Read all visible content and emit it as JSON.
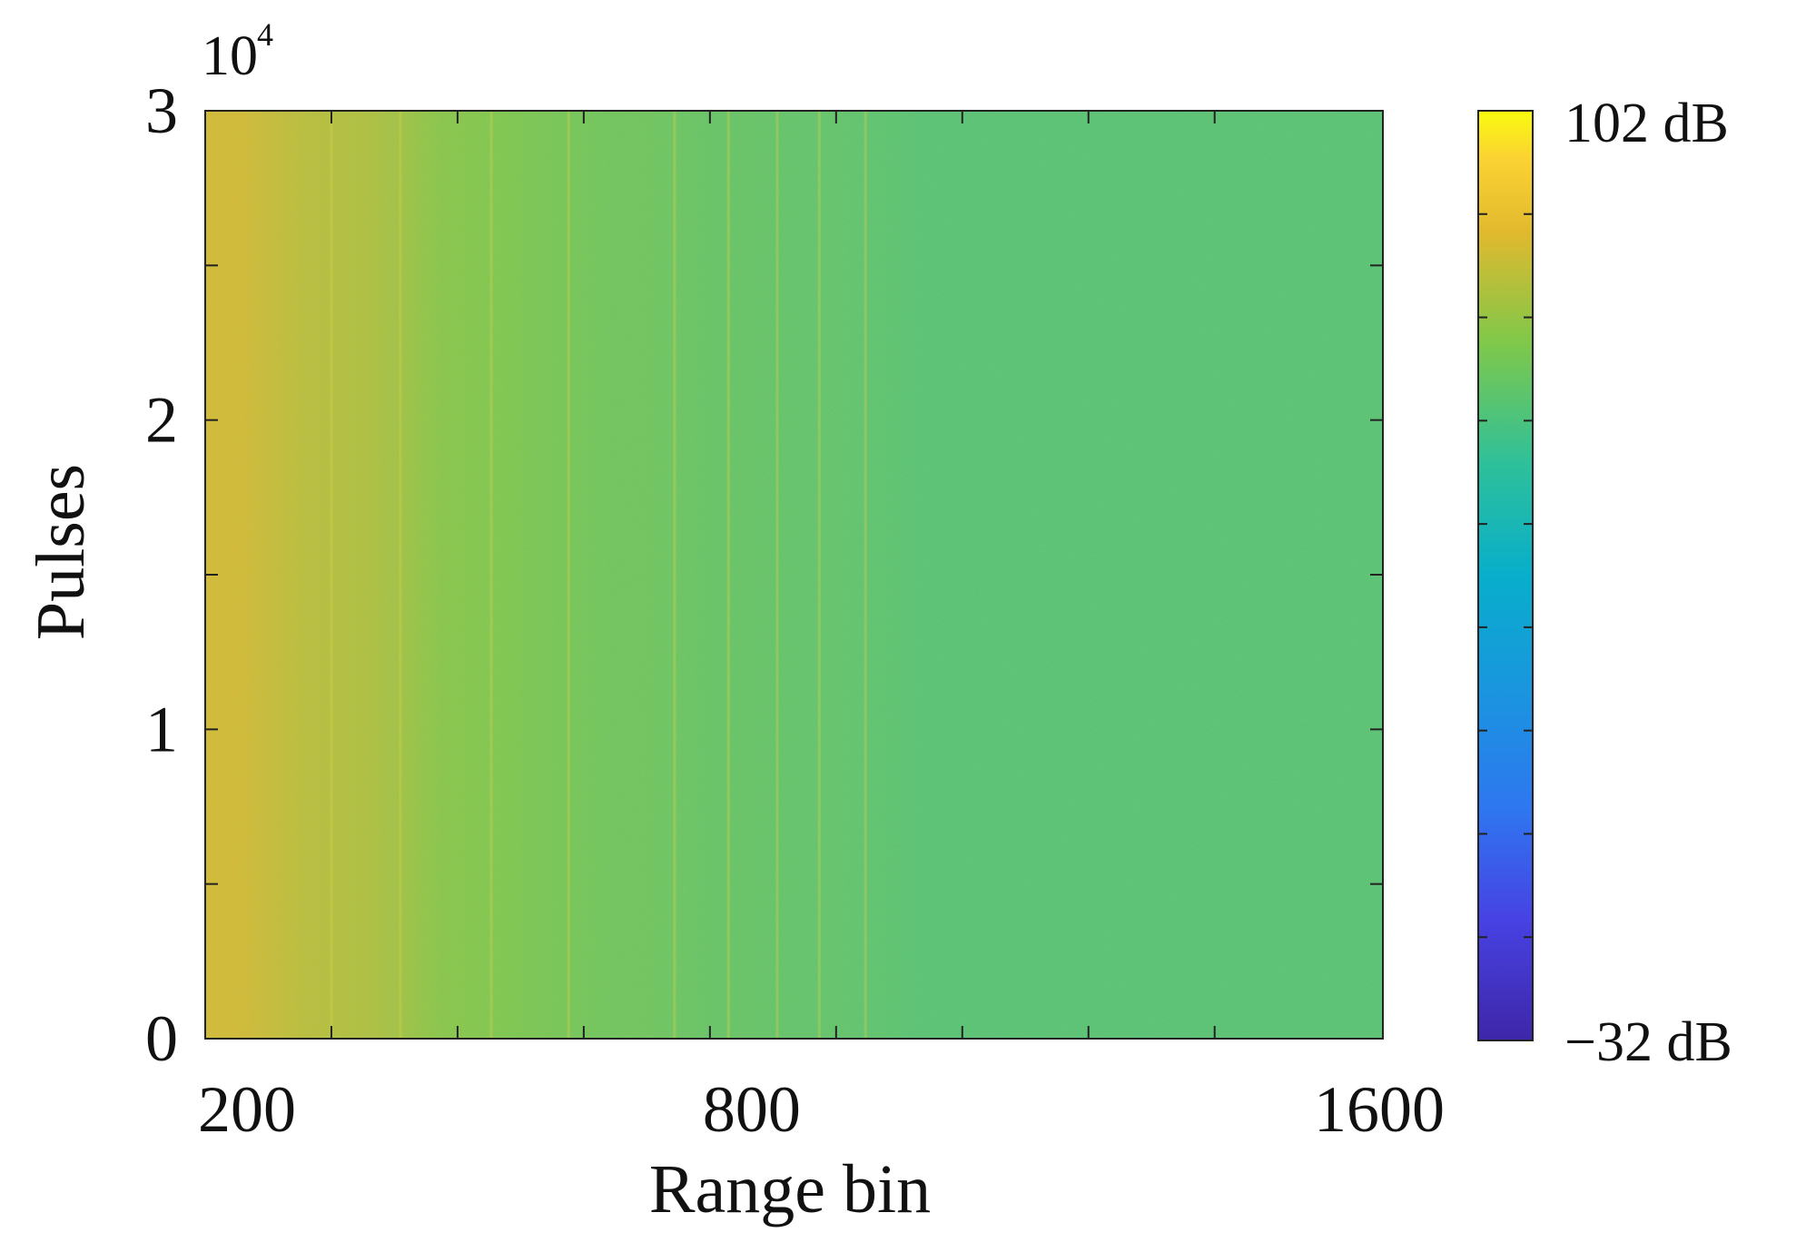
{
  "chart_data": {
    "type": "heatmap",
    "title": "",
    "xlabel": "Range bin",
    "ylabel": "Pulses",
    "x_range": [
      200,
      1600
    ],
    "y_range": [
      0,
      30000
    ],
    "x_ticks": [
      200,
      800,
      1600
    ],
    "x_tick_labels": [
      "200",
      "800",
      "1600"
    ],
    "x_minor_ticks": [
      200,
      350,
      500,
      650,
      800,
      950,
      1100,
      1250,
      1400,
      1600
    ],
    "y_ticks": [
      0,
      10000,
      20000,
      30000
    ],
    "y_tick_labels": [
      "0",
      "1",
      "2",
      "3"
    ],
    "y_minor_ticks": [
      0,
      5000,
      10000,
      15000,
      20000,
      25000,
      30000
    ],
    "y_exponent_base": "10",
    "y_exponent_power": "4",
    "colorbar": {
      "min": -32,
      "max": 102,
      "max_label": "102 dB",
      "min_label": "−32 dB",
      "colormap": "parula"
    },
    "intensity_profile_db": {
      "x": [
        200,
        240,
        280,
        320,
        360,
        400,
        440,
        480,
        520,
        560,
        600,
        640,
        680,
        720,
        760,
        800,
        850,
        900,
        950,
        1000,
        1050,
        1100,
        1150,
        1200,
        1250,
        1300,
        1350,
        1400,
        1450,
        1500,
        1550,
        1600
      ],
      "values": [
        82,
        82,
        80,
        78,
        77,
        76,
        73,
        70,
        69,
        68,
        67,
        66,
        65,
        65,
        64,
        63,
        63,
        62,
        62,
        61,
        60,
        60,
        60,
        60,
        60,
        60,
        60,
        60,
        60,
        60,
        60,
        60
      ]
    },
    "brighter_streaks_x": [
      350,
      432,
      540,
      632,
      758,
      822,
      880,
      930,
      985
    ]
  }
}
